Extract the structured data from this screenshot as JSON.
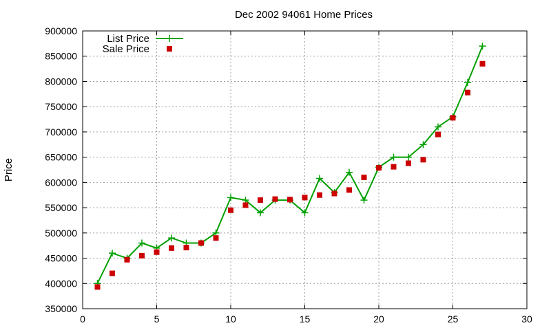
{
  "chart_data": {
    "type": "line",
    "title": "Dec 2002 94061 Home Prices",
    "xlabel": "",
    "ylabel": "Price",
    "xlim": [
      0,
      30
    ],
    "ylim": [
      350000,
      900000
    ],
    "x_ticks": [
      0,
      5,
      10,
      15,
      20,
      25,
      30
    ],
    "y_ticks": [
      350000,
      400000,
      450000,
      500000,
      550000,
      600000,
      650000,
      700000,
      750000,
      800000,
      850000,
      900000
    ],
    "grid": true,
    "legend_position": "top-left",
    "series": [
      {
        "name": "List Price",
        "kind": "line-points",
        "color": "#00a000",
        "x": [
          1,
          2,
          3,
          4,
          5,
          6,
          7,
          8,
          9,
          10,
          11,
          12,
          13,
          14,
          15,
          16,
          17,
          18,
          19,
          20,
          21,
          22,
          23,
          24,
          25,
          26,
          27
        ],
        "y": [
          400000,
          460000,
          450000,
          480000,
          470000,
          490000,
          480000,
          480000,
          500000,
          570000,
          565000,
          540000,
          565000,
          565000,
          540000,
          608000,
          580000,
          620000,
          565000,
          630000,
          650000,
          650000,
          675000,
          710000,
          730000,
          798000,
          870000
        ]
      },
      {
        "name": "Sale Price",
        "kind": "points",
        "color": "#cc0000",
        "x": [
          1,
          2,
          3,
          4,
          5,
          6,
          7,
          8,
          9,
          10,
          11,
          12,
          13,
          14,
          15,
          16,
          17,
          18,
          19,
          20,
          21,
          22,
          23,
          24,
          25,
          26,
          27
        ],
        "y": [
          393000,
          420000,
          447000,
          455000,
          462000,
          470000,
          471000,
          480000,
          490000,
          545000,
          555000,
          565000,
          567000,
          566000,
          570000,
          575000,
          578000,
          585000,
          610000,
          629000,
          631000,
          638000,
          645000,
          695000,
          728000,
          778000,
          835000
        ]
      }
    ]
  }
}
